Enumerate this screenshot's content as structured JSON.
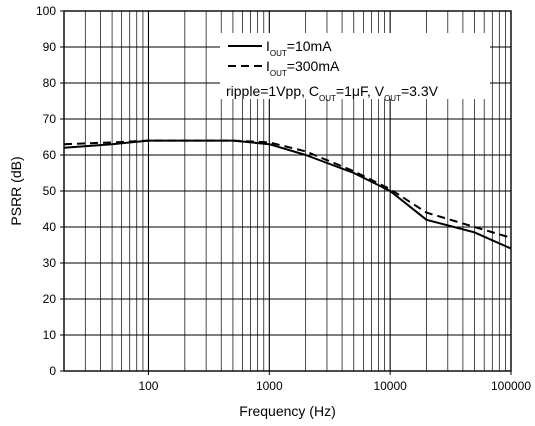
{
  "chart_data": {
    "type": "line",
    "title": "",
    "xlabel": "Frequency (Hz)",
    "ylabel": "PSRR (dB)",
    "xscale": "log",
    "xlim": [
      20,
      100000
    ],
    "ylim": [
      0,
      100
    ],
    "xticks": [
      100,
      1000,
      10000,
      100000
    ],
    "xtick_labels": [
      "100",
      "1000",
      "10000",
      "100000"
    ],
    "yticks": [
      0,
      10,
      20,
      30,
      40,
      50,
      60,
      70,
      80,
      90,
      100
    ],
    "ytick_labels": [
      "0",
      "10",
      "20",
      "30",
      "40",
      "50",
      "60",
      "70",
      "80",
      "90",
      "100"
    ],
    "grid": true,
    "legend_position": "top-right",
    "series": [
      {
        "name": "IOUT=10mA",
        "label_main": "I",
        "label_sub": "OUT",
        "label_rest": "=10mA",
        "style": "solid",
        "color": "#000000",
        "x": [
          20,
          50,
          100,
          200,
          500,
          1000,
          2000,
          5000,
          10000,
          20000,
          50000,
          100000
        ],
        "y": [
          62,
          63,
          64,
          64,
          64,
          63,
          60,
          55,
          50,
          42,
          38.5,
          34
        ]
      },
      {
        "name": "IOUT=300mA",
        "label_main": "I",
        "label_sub": "OUT",
        "label_rest": "=300mA",
        "style": "dashed",
        "color": "#000000",
        "x": [
          20,
          50,
          100,
          200,
          500,
          1000,
          2000,
          5000,
          10000,
          20000,
          50000,
          100000
        ],
        "y": [
          63,
          63.5,
          64,
          64,
          64,
          63.5,
          61,
          55.5,
          50.5,
          44,
          40,
          37
        ]
      }
    ],
    "annotation": {
      "parts": [
        {
          "t": "ripple=1Vpp, C",
          "sub": false
        },
        {
          "t": "OUT",
          "sub": true
        },
        {
          "t": "=1",
          "sub": false
        },
        {
          "t": "μ",
          "sub": false
        },
        {
          "t": "F, V",
          "sub": false
        },
        {
          "t": "OUT",
          "sub": true
        },
        {
          "t": "=3.3V",
          "sub": false
        }
      ]
    }
  }
}
